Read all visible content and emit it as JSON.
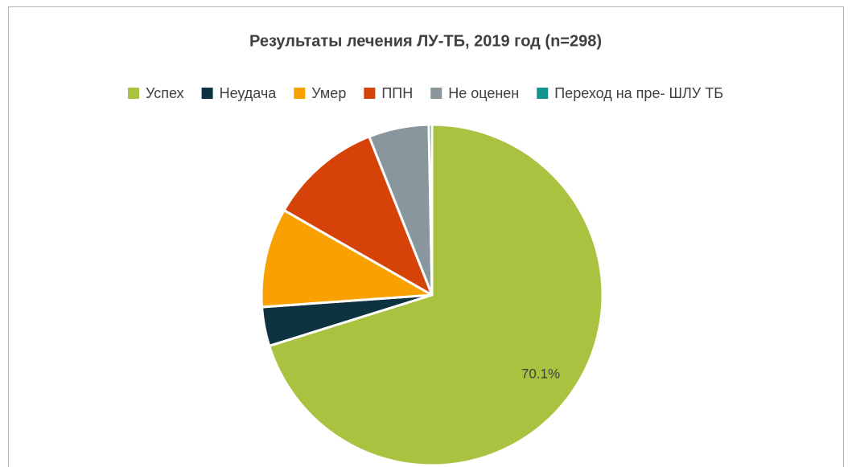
{
  "chart_data": {
    "type": "pie",
    "title": "Результаты лечения ЛУ-ТБ, 2019 год (n=298)",
    "categories": [
      "Успех",
      "Неудача",
      "Умер",
      "ППН",
      "Не оценен",
      "Переход на пре- ШЛУ ТБ"
    ],
    "values": [
      70.1,
      3.7,
      9.4,
      10.7,
      5.7,
      0.3
    ],
    "value_labels": [
      "70.1%",
      null,
      null,
      null,
      null,
      null
    ],
    "colors": [
      "#a9c23f",
      "#0d3340",
      "#f9a100",
      "#d64309",
      "#8a969e",
      "#12948e"
    ],
    "legend": "top"
  }
}
